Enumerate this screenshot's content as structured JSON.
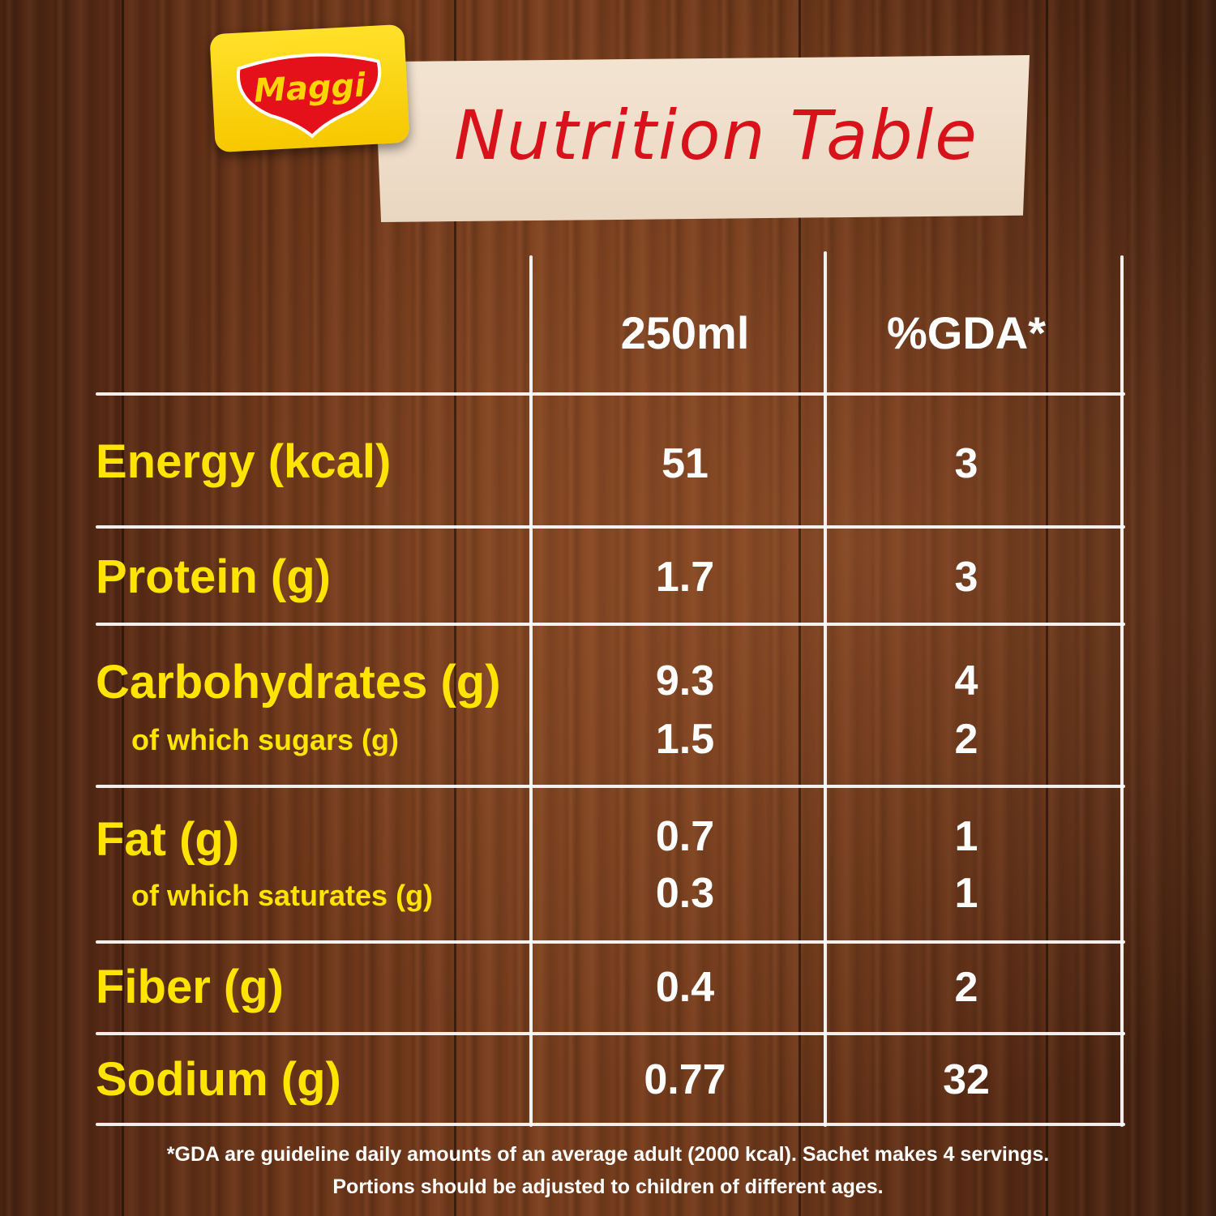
{
  "logo": {
    "text": "MAGGI"
  },
  "title": "Nutrition Table",
  "columns": {
    "c1": "250ml",
    "c2": "%GDA*"
  },
  "rows": [
    {
      "label": "Energy (kcal)",
      "v1": "51",
      "v2": "3"
    },
    {
      "label": "Protein (g)",
      "v1": "1.7",
      "v2": "3"
    },
    {
      "label": "Carbohydrates (g)",
      "v1": "9.3",
      "v2": "4"
    },
    {
      "label": "of which sugars (g)",
      "v1": "1.5",
      "v2": "2"
    },
    {
      "label": "Fat (g)",
      "v1": "0.7",
      "v2": "1"
    },
    {
      "label": "of which saturates (g)",
      "v1": "0.3",
      "v2": "1"
    },
    {
      "label": "Fiber (g)",
      "v1": "0.4",
      "v2": "2"
    },
    {
      "label": "Sodium (g)",
      "v1": "0.77",
      "v2": "32"
    }
  ],
  "footnote": {
    "line1": "*GDA are guideline daily amounts of an average adult (2000 kcal). Sachet makes 4 servings.",
    "line2": "Portions should be adjusted to children of different ages."
  },
  "colors": {
    "label": "#ffe400",
    "value": "#ffffff",
    "title": "#d8121a",
    "logo_bg": "#ffd500"
  }
}
